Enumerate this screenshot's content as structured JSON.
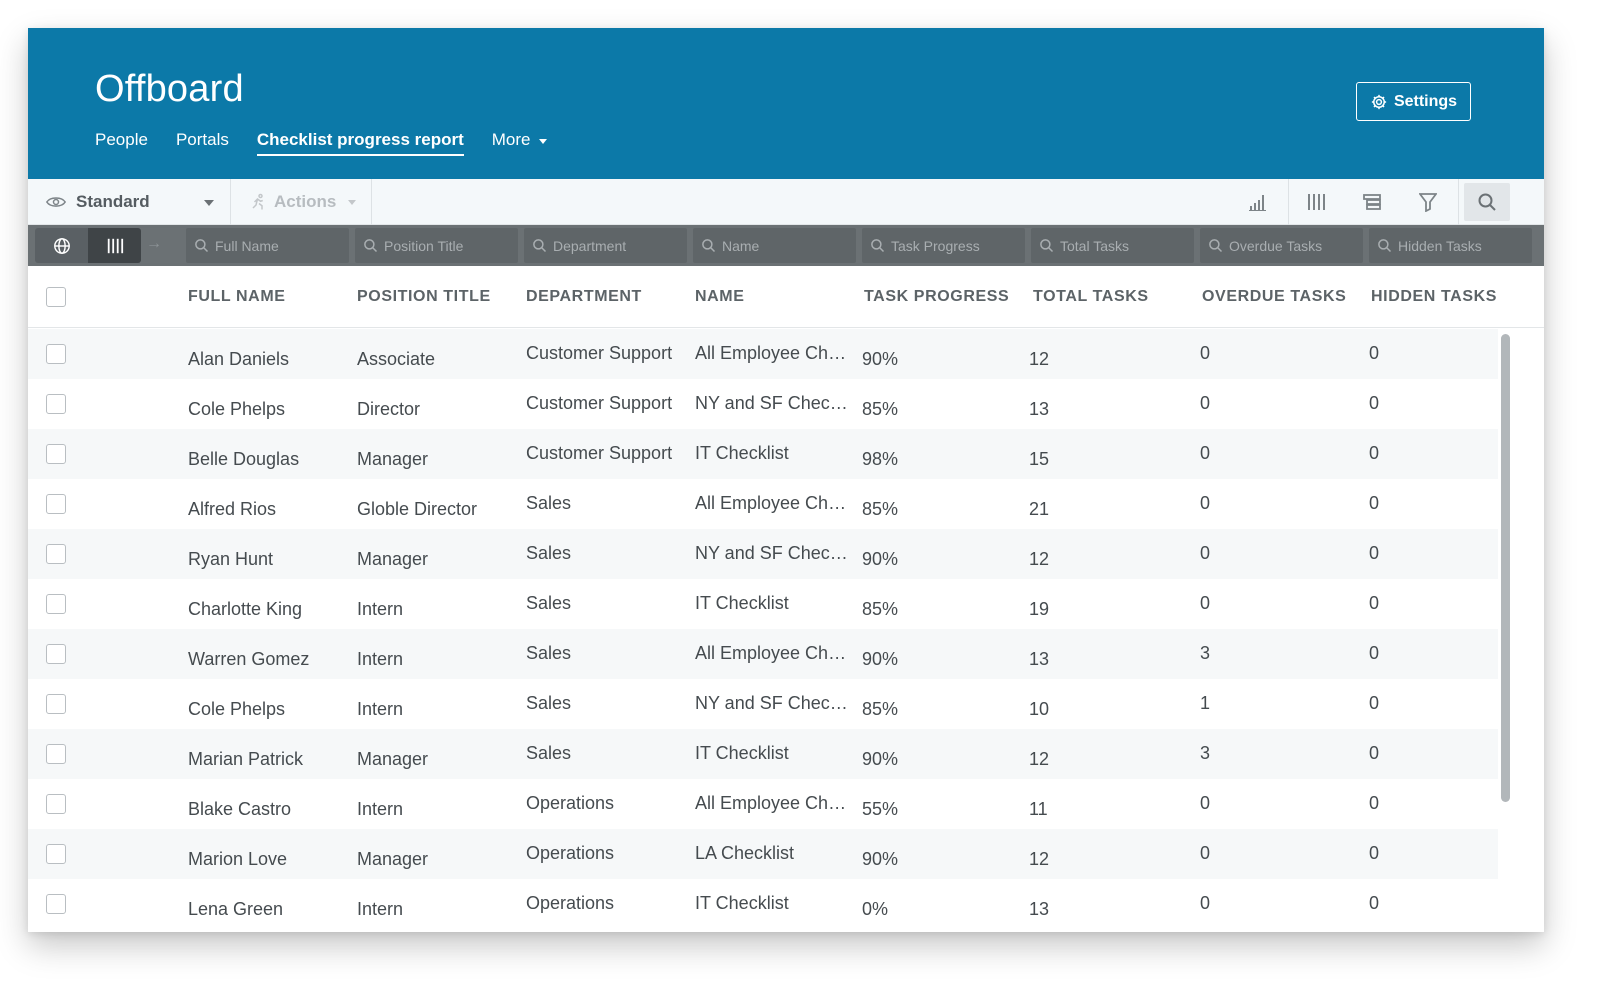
{
  "app": {
    "title": "Offboard",
    "settings_label": "Settings"
  },
  "nav": {
    "tabs": [
      "People",
      "Portals",
      "Checklist progress report"
    ],
    "active_tab": "Checklist progress report",
    "more_label": "More"
  },
  "toolbar": {
    "view_label": "Standard",
    "actions_label": "Actions",
    "icons": [
      "chart-icon",
      "columns-icon",
      "group-icon",
      "filter-icon",
      "search-icon"
    ]
  },
  "filters": {
    "placeholders": [
      "Full Name",
      "Position Title",
      "Department",
      "Name",
      "Task Progress",
      "Total Tasks",
      "Overdue Tasks",
      "Hidden Tasks"
    ]
  },
  "table": {
    "columns": [
      "FULL NAME",
      "POSITION TITLE",
      "DEPARTMENT",
      "NAME",
      "TASK PROGRESS",
      "TOTAL TASKS",
      "OVERDUE TASKS",
      "HIDDEN TASKS"
    ],
    "rows": [
      [
        "Alan Daniels",
        "Associate",
        "Customer Support",
        "All Employee Checklist",
        "90%",
        "12",
        "0",
        "0"
      ],
      [
        "Cole Phelps",
        "Director",
        "Customer Support",
        "NY and SF Checklist",
        "85%",
        "13",
        "0",
        "0"
      ],
      [
        "Belle Douglas",
        "Manager",
        "Customer Support",
        "IT Checklist",
        "98%",
        "15",
        "0",
        "0"
      ],
      [
        "Alfred Rios",
        "Globle Director",
        "Sales",
        "All Employee Checklist",
        "85%",
        "21",
        "0",
        "0"
      ],
      [
        "Ryan Hunt",
        "Manager",
        "Sales",
        "NY and SF Checklist",
        "90%",
        "12",
        "0",
        "0"
      ],
      [
        "Charlotte King",
        "Intern",
        "Sales",
        "IT Checklist",
        "85%",
        "19",
        "0",
        "0"
      ],
      [
        "Warren Gomez",
        "Intern",
        "Sales",
        "All Employee Checklist",
        "90%",
        "13",
        "3",
        "0"
      ],
      [
        "Cole Phelps",
        "Intern",
        "Sales",
        "NY and SF Checklist",
        "85%",
        "10",
        "1",
        "0"
      ],
      [
        "Marian Patrick",
        "Manager",
        "Sales",
        "IT Checklist",
        "90%",
        "12",
        "3",
        "0"
      ],
      [
        "Blake Castro",
        "Intern",
        "Operations",
        "All Employee Checklist",
        "55%",
        "11",
        "0",
        "0"
      ],
      [
        "Marion Love",
        "Manager",
        "Operations",
        "LA Checklist",
        "90%",
        "12",
        "0",
        "0"
      ],
      [
        "Lena Green",
        "Intern",
        "Operations",
        "IT Checklist",
        "0%",
        "13",
        "0",
        "0"
      ]
    ]
  },
  "colors": {
    "header_bg": "#0c79a8",
    "filterbar_bg": "#6b7174",
    "row_alt_bg": "#f6f8f9"
  }
}
